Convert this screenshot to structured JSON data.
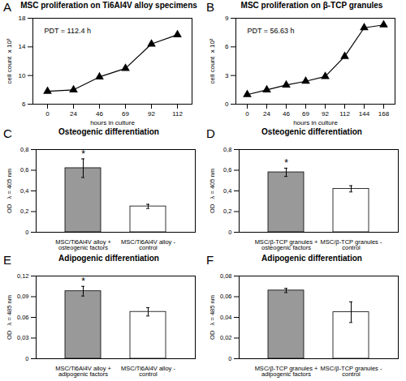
{
  "chart_data": [
    {
      "type": "line",
      "label": "A",
      "title": "MSC proliferation on Ti6Al4V alloy specimens",
      "annotation": "PDT = 112.4 h",
      "x_label": "hours in culture",
      "y_label": "cell count  x 10³",
      "categories": [
        "0",
        "24",
        "46",
        "69",
        "92",
        "112"
      ],
      "values": [
        7.8,
        8.0,
        9.8,
        11.0,
        14.4,
        15.7
      ],
      "color": "#000000",
      "marker": "triangle",
      "ylim": [
        6,
        18
      ],
      "yticks": [
        6,
        10,
        14,
        18
      ]
    },
    {
      "type": "line",
      "label": "B",
      "title": "MSC proliferation on β-TCP granules",
      "annotation": "PDT = 56.63 h",
      "x_label": "hours in culture",
      "y_label": "cell count  x 10³",
      "categories": [
        "0",
        "24",
        "46",
        "69",
        "92",
        "112",
        "144",
        "168"
      ],
      "values": [
        1.0,
        1.5,
        2.0,
        2.4,
        2.9,
        5.0,
        8.0,
        8.3
      ],
      "color": "#000000",
      "marker": "triangle",
      "ylim": [
        0,
        9
      ],
      "yticks": [
        0,
        3,
        6,
        9
      ]
    },
    {
      "type": "bar",
      "label": "C",
      "title": "Osteogenic differentiation",
      "y_label": "OD   λ = 405 nm",
      "categories": [
        "MSC/Ti6Al4V alloy + osteogenic factors",
        "MSC/Ti6Al4V alloy - control"
      ],
      "values": [
        0.62,
        0.25
      ],
      "errors": [
        0.09,
        0.02
      ],
      "annotations": [
        "*",
        null
      ],
      "colors": [
        "#999999",
        "#ffffff"
      ],
      "ylim": [
        0,
        0.8
      ],
      "yticks": [
        0,
        {
          "value": 0.2,
          "label": "0,2"
        },
        {
          "value": 0.4,
          "label": "0,4"
        },
        {
          "value": 0.6,
          "label": "0,6"
        },
        {
          "value": 0.8,
          "label": "0,8"
        }
      ]
    },
    {
      "type": "bar",
      "label": "D",
      "title": "Osteogenic differentiation",
      "y_label": "OD   λ = 405 nm",
      "categories": [
        "MSC/β-TCP granules + osteogenic factors",
        "MSC/β-TCP granules - control"
      ],
      "values": [
        0.58,
        0.42
      ],
      "errors": [
        0.04,
        0.03
      ],
      "annotations": [
        "*",
        null
      ],
      "colors": [
        "#999999",
        "#ffffff"
      ],
      "ylim": [
        0,
        0.8
      ],
      "yticks": [
        0,
        {
          "value": 0.2,
          "label": "0,2"
        },
        {
          "value": 0.4,
          "label": "0,4"
        },
        {
          "value": 0.6,
          "label": "0,6"
        },
        {
          "value": 0.8,
          "label": "0,8"
        }
      ]
    },
    {
      "type": "bar",
      "label": "E",
      "title": "Adipogenic differentiation",
      "y_label": "OD   λ = 485 nm",
      "categories": [
        "MSC/Ti6Al4V alloy + adipogenic factors",
        "MSC/Ti6Al4V alloy - control"
      ],
      "values": [
        0.098,
        0.068
      ],
      "errors": [
        0.007,
        0.006
      ],
      "annotations": [
        "*",
        null
      ],
      "colors": [
        "#999999",
        "#ffffff"
      ],
      "ylim": [
        0,
        0.12
      ],
      "yticks": [
        0,
        {
          "value": 0.03,
          "label": "0,03"
        },
        {
          "value": 0.06,
          "label": "0,06"
        },
        {
          "value": 0.09,
          "label": "0,09"
        },
        {
          "value": 0.12,
          "label": "0,12"
        }
      ]
    },
    {
      "type": "bar",
      "label": "F",
      "title": "Adipogenic differentiation",
      "y_label": "OD   λ = 485 nm",
      "categories": [
        "MSC/β-TCP granules + adipogenic factors",
        "MSC/β-TCP granules - control"
      ],
      "values": [
        0.066,
        0.045
      ],
      "errors": [
        0.002,
        0.01
      ],
      "annotations": [
        null,
        null
      ],
      "colors": [
        "#999999",
        "#ffffff"
      ],
      "ylim": [
        0,
        0.08
      ],
      "yticks": [
        0,
        {
          "value": 0.02,
          "label": "0,02"
        },
        {
          "value": 0.04,
          "label": "0,04"
        },
        {
          "value": 0.06,
          "label": "0,06"
        },
        {
          "value": 0.08,
          "label": "0,08"
        }
      ]
    }
  ]
}
